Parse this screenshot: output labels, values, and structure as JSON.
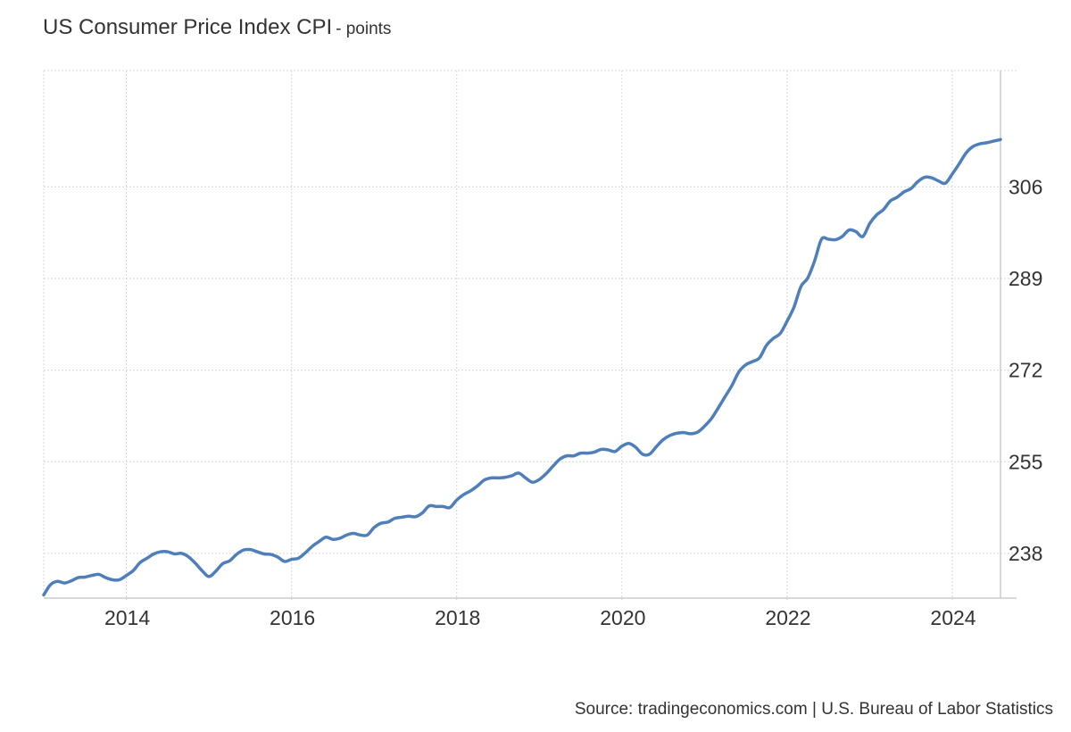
{
  "title": "US Consumer Price Index CPI",
  "subtitle": "- points",
  "source": "Source: tradingeconomics.com | U.S. Bureau of Labor Statistics",
  "colors": {
    "line": "#4f7fbb",
    "grid": "#d7d7d7",
    "axis": "#cccccc",
    "text": "#333333"
  },
  "chart_data": {
    "type": "line",
    "title": "US Consumer Price Index CPI",
    "subtitle": "- points",
    "xlabel": "",
    "ylabel": "",
    "x_ticks": [
      "2014",
      "2016",
      "2018",
      "2020",
      "2022",
      "2024"
    ],
    "y_ticks": [
      238,
      255,
      272,
      289,
      306
    ],
    "xlim": [
      "2013-01",
      "2024-08"
    ],
    "ylim": [
      229.7,
      327.6
    ],
    "y_axis_position": "right",
    "grid": true,
    "legend": "none",
    "series": [
      {
        "values": [
          [
            "2013-01",
            230.3
          ],
          [
            "2013-02",
            232.2
          ],
          [
            "2013-03",
            232.8
          ],
          [
            "2013-04",
            232.5
          ],
          [
            "2013-05",
            232.9
          ],
          [
            "2013-06",
            233.5
          ],
          [
            "2013-07",
            233.6
          ],
          [
            "2013-08",
            233.9
          ],
          [
            "2013-09",
            234.1
          ],
          [
            "2013-10",
            233.5
          ],
          [
            "2013-11",
            233.1
          ],
          [
            "2013-12",
            233.1
          ],
          [
            "2014-01",
            233.9
          ],
          [
            "2014-02",
            234.8
          ],
          [
            "2014-03",
            236.3
          ],
          [
            "2014-04",
            237.1
          ],
          [
            "2014-05",
            237.9
          ],
          [
            "2014-06",
            238.3
          ],
          [
            "2014-07",
            238.3
          ],
          [
            "2014-08",
            237.9
          ],
          [
            "2014-09",
            238.0
          ],
          [
            "2014-10",
            237.4
          ],
          [
            "2014-11",
            236.2
          ],
          [
            "2014-12",
            234.8
          ],
          [
            "2015-01",
            233.7
          ],
          [
            "2015-02",
            234.7
          ],
          [
            "2015-03",
            236.1
          ],
          [
            "2015-04",
            236.6
          ],
          [
            "2015-05",
            237.8
          ],
          [
            "2015-06",
            238.6
          ],
          [
            "2015-07",
            238.7
          ],
          [
            "2015-08",
            238.3
          ],
          [
            "2015-09",
            237.9
          ],
          [
            "2015-10",
            237.8
          ],
          [
            "2015-11",
            237.3
          ],
          [
            "2015-12",
            236.5
          ],
          [
            "2016-01",
            236.9
          ],
          [
            "2016-02",
            237.1
          ],
          [
            "2016-03",
            238.1
          ],
          [
            "2016-04",
            239.3
          ],
          [
            "2016-05",
            240.2
          ],
          [
            "2016-06",
            241.0
          ],
          [
            "2016-07",
            240.6
          ],
          [
            "2016-08",
            240.8
          ],
          [
            "2016-09",
            241.4
          ],
          [
            "2016-10",
            241.7
          ],
          [
            "2016-11",
            241.4
          ],
          [
            "2016-12",
            241.4
          ],
          [
            "2017-01",
            242.8
          ],
          [
            "2017-02",
            243.6
          ],
          [
            "2017-03",
            243.8
          ],
          [
            "2017-04",
            244.5
          ],
          [
            "2017-05",
            244.7
          ],
          [
            "2017-06",
            244.9
          ],
          [
            "2017-07",
            244.8
          ],
          [
            "2017-08",
            245.5
          ],
          [
            "2017-09",
            246.8
          ],
          [
            "2017-10",
            246.7
          ],
          [
            "2017-11",
            246.7
          ],
          [
            "2017-12",
            246.5
          ],
          [
            "2018-01",
            247.9
          ],
          [
            "2018-02",
            248.9
          ],
          [
            "2018-03",
            249.6
          ],
          [
            "2018-04",
            250.5
          ],
          [
            "2018-05",
            251.6
          ],
          [
            "2018-06",
            252.0
          ],
          [
            "2018-07",
            252.0
          ],
          [
            "2018-08",
            252.1
          ],
          [
            "2018-09",
            252.4
          ],
          [
            "2018-10",
            252.9
          ],
          [
            "2018-11",
            252.0
          ],
          [
            "2018-12",
            251.2
          ],
          [
            "2019-01",
            251.7
          ],
          [
            "2019-02",
            252.8
          ],
          [
            "2019-03",
            254.2
          ],
          [
            "2019-04",
            255.5
          ],
          [
            "2019-05",
            256.1
          ],
          [
            "2019-06",
            256.1
          ],
          [
            "2019-07",
            256.6
          ],
          [
            "2019-08",
            256.6
          ],
          [
            "2019-09",
            256.8
          ],
          [
            "2019-10",
            257.3
          ],
          [
            "2019-11",
            257.2
          ],
          [
            "2019-12",
            256.9
          ],
          [
            "2020-01",
            257.9
          ],
          [
            "2020-02",
            258.4
          ],
          [
            "2020-03",
            257.7
          ],
          [
            "2020-04",
            256.4
          ],
          [
            "2020-05",
            256.4
          ],
          [
            "2020-06",
            257.8
          ],
          [
            "2020-07",
            259.1
          ],
          [
            "2020-08",
            259.9
          ],
          [
            "2020-09",
            260.3
          ],
          [
            "2020-10",
            260.4
          ],
          [
            "2020-11",
            260.2
          ],
          [
            "2020-12",
            260.5
          ],
          [
            "2021-01",
            261.6
          ],
          [
            "2021-02",
            263.0
          ],
          [
            "2021-03",
            265.0
          ],
          [
            "2021-04",
            267.1
          ],
          [
            "2021-05",
            269.2
          ],
          [
            "2021-06",
            271.7
          ],
          [
            "2021-07",
            273.0
          ],
          [
            "2021-08",
            273.6
          ],
          [
            "2021-09",
            274.3
          ],
          [
            "2021-10",
            276.6
          ],
          [
            "2021-11",
            277.9
          ],
          [
            "2021-12",
            278.8
          ],
          [
            "2022-01",
            281.1
          ],
          [
            "2022-02",
            283.7
          ],
          [
            "2022-03",
            287.5
          ],
          [
            "2022-04",
            289.1
          ],
          [
            "2022-05",
            292.3
          ],
          [
            "2022-06",
            296.3
          ],
          [
            "2022-07",
            296.3
          ],
          [
            "2022-08",
            296.2
          ],
          [
            "2022-09",
            296.8
          ],
          [
            "2022-10",
            298.0
          ],
          [
            "2022-11",
            297.7
          ],
          [
            "2022-12",
            296.8
          ],
          [
            "2023-01",
            299.2
          ],
          [
            "2023-02",
            300.8
          ],
          [
            "2023-03",
            301.8
          ],
          [
            "2023-04",
            303.4
          ],
          [
            "2023-05",
            304.1
          ],
          [
            "2023-06",
            305.1
          ],
          [
            "2023-07",
            305.7
          ],
          [
            "2023-08",
            307.0
          ],
          [
            "2023-09",
            307.8
          ],
          [
            "2023-10",
            307.7
          ],
          [
            "2023-11",
            307.1
          ],
          [
            "2023-12",
            306.7
          ],
          [
            "2024-01",
            308.4
          ],
          [
            "2024-02",
            310.3
          ],
          [
            "2024-03",
            312.3
          ],
          [
            "2024-04",
            313.5
          ],
          [
            "2024-05",
            314.0
          ],
          [
            "2024-06",
            314.2
          ],
          [
            "2024-07",
            314.5
          ],
          [
            "2024-08",
            314.8
          ]
        ]
      }
    ]
  }
}
